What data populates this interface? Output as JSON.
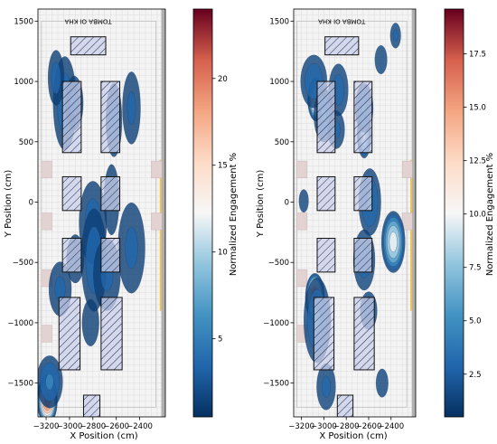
{
  "chart_data": [
    {
      "type": "heatmap",
      "xlabel": "X Position (cm)",
      "ylabel": "Y Position (cm)",
      "xlim": [
        -3270,
        -2180
      ],
      "ylim": [
        -1780,
        1600
      ],
      "xticks": [
        -3200,
        -3000,
        -2800,
        -2600,
        -2400
      ],
      "xtick_labels": [
        "−3200",
        "−3000",
        "−2800",
        "−2600",
        "−2400"
      ],
      "yticks": [
        -1500,
        -1000,
        -500,
        0,
        500,
        1000,
        1500
      ],
      "ytick_labels": [
        "−1500",
        "−1000",
        "−500",
        "0",
        "500",
        "1000",
        "1500"
      ],
      "map_text": "TOMBA OI KHA",
      "colorbar": {
        "label": "Normalized Engagement %",
        "range": [
          0.5,
          24
        ],
        "ticks": [
          5,
          10,
          15,
          20
        ],
        "tick_labels": [
          "5",
          "10",
          "15",
          "20"
        ]
      },
      "obstacles": [
        {
          "x0": -2990,
          "x1": -2690,
          "y0": 1220,
          "y1": 1370
        },
        {
          "x0": -3060,
          "x1": -2900,
          "y0": 410,
          "y1": 1000
        },
        {
          "x0": -2730,
          "x1": -2570,
          "y0": 410,
          "y1": 1000
        },
        {
          "x0": -3060,
          "x1": -2900,
          "y0": -70,
          "y1": 210
        },
        {
          "x0": -2730,
          "x1": -2570,
          "y0": -70,
          "y1": 210
        },
        {
          "x0": -3060,
          "x1": -2900,
          "y0": -580,
          "y1": -300
        },
        {
          "x0": -2730,
          "x1": -2570,
          "y0": -580,
          "y1": -300
        },
        {
          "x0": -3090,
          "x1": -2910,
          "y0": -1390,
          "y1": -790
        },
        {
          "x0": -2730,
          "x1": -2550,
          "y0": -1390,
          "y1": -790
        },
        {
          "x0": -2880,
          "x1": -2740,
          "y0": -1780,
          "y1": -1600
        }
      ],
      "hotspots": [
        {
          "x": -3040,
          "y": 820,
          "sx": 50,
          "sy": 200,
          "v": 5.0
        },
        {
          "x": -3115,
          "y": 1030,
          "sx": 35,
          "sy": 120,
          "v": 4.5
        },
        {
          "x": -2960,
          "y": 820,
          "sx": 40,
          "sy": 120,
          "v": 4.0
        },
        {
          "x": -2620,
          "y": 680,
          "sx": 35,
          "sy": 160,
          "v": 4.5
        },
        {
          "x": -2470,
          "y": 780,
          "sx": 40,
          "sy": 160,
          "v": 4.0
        },
        {
          "x": -2800,
          "y": -170,
          "sx": 60,
          "sy": 180,
          "v": 4.5
        },
        {
          "x": -2790,
          "y": -480,
          "sx": 55,
          "sy": 220,
          "v": 5.0
        },
        {
          "x": -2680,
          "y": -600,
          "sx": 60,
          "sy": 160,
          "v": 4.0
        },
        {
          "x": -2470,
          "y": -380,
          "sx": 60,
          "sy": 200,
          "v": 4.0
        },
        {
          "x": -2950,
          "y": -470,
          "sx": 40,
          "sy": 110,
          "v": 3.5
        },
        {
          "x": -2640,
          "y": 20,
          "sx": 35,
          "sy": 160,
          "v": 3.5
        },
        {
          "x": -3080,
          "y": -720,
          "sx": 50,
          "sy": 120,
          "v": 4.0
        },
        {
          "x": -3190,
          "y": -1640,
          "sx": 40,
          "sy": 100,
          "v": 22.0
        },
        {
          "x": -3170,
          "y": -1490,
          "sx": 55,
          "sy": 110,
          "v": 6.0
        },
        {
          "x": -2820,
          "y": -1000,
          "sx": 40,
          "sy": 110,
          "v": 3.0
        }
      ]
    },
    {
      "type": "heatmap",
      "xlabel": "X Position (cm)",
      "ylabel": "Y Position (cm)",
      "xlim": [
        -3270,
        -2180
      ],
      "ylim": [
        -1780,
        1600
      ],
      "xticks": [
        -3200,
        -3000,
        -2800,
        -2600,
        -2400
      ],
      "xtick_labels": [
        "−3200",
        "−3000",
        "−2800",
        "−2600",
        "−2400"
      ],
      "yticks": [
        -1500,
        -1000,
        -500,
        0,
        500,
        1000,
        1500
      ],
      "ytick_labels": [
        "−1500",
        "−1000",
        "−500",
        "0",
        "500",
        "1000",
        "1500"
      ],
      "map_text": "TOMBA OI KHA",
      "colorbar": {
        "label": "Normalized Engagement %",
        "range": [
          0.5,
          19.6
        ],
        "ticks": [
          2.5,
          5.0,
          7.5,
          10.0,
          12.5,
          15.0,
          17.5
        ],
        "tick_labels": [
          "2.5",
          "5.0",
          "7.5",
          "10.0",
          "12.5",
          "15.0",
          "17.5"
        ]
      },
      "obstacles": [
        {
          "x0": -2990,
          "x1": -2690,
          "y0": 1220,
          "y1": 1370
        },
        {
          "x0": -3060,
          "x1": -2900,
          "y0": 410,
          "y1": 1000
        },
        {
          "x0": -2730,
          "x1": -2570,
          "y0": 410,
          "y1": 1000
        },
        {
          "x0": -3060,
          "x1": -2900,
          "y0": -70,
          "y1": 210
        },
        {
          "x0": -2730,
          "x1": -2570,
          "y0": -70,
          "y1": 210
        },
        {
          "x0": -3060,
          "x1": -2900,
          "y0": -580,
          "y1": -300
        },
        {
          "x0": -2730,
          "x1": -2570,
          "y0": -580,
          "y1": -300
        },
        {
          "x0": -3090,
          "x1": -2910,
          "y0": -1390,
          "y1": -790
        },
        {
          "x0": -2730,
          "x1": -2550,
          "y0": -1390,
          "y1": -790
        },
        {
          "x0": -2880,
          "x1": -2740,
          "y0": -1780,
          "y1": -1600
        }
      ],
      "hotspots": [
        {
          "x": -3070,
          "y": 850,
          "sx": 35,
          "sy": 90,
          "v": 15.0
        },
        {
          "x": -3090,
          "y": 1000,
          "sx": 60,
          "sy": 120,
          "v": 4.5
        },
        {
          "x": -3000,
          "y": 720,
          "sx": 45,
          "sy": 120,
          "v": 5.0
        },
        {
          "x": -2870,
          "y": 930,
          "sx": 45,
          "sy": 120,
          "v": 4.0
        },
        {
          "x": -2640,
          "y": 560,
          "sx": 30,
          "sy": 100,
          "v": 10.5
        },
        {
          "x": -2640,
          "y": 780,
          "sx": 40,
          "sy": 110,
          "v": 5.0
        },
        {
          "x": -2890,
          "y": 600,
          "sx": 40,
          "sy": 90,
          "v": 3.5
        },
        {
          "x": -2360,
          "y": 1380,
          "sx": 25,
          "sy": 60,
          "v": 3.5
        },
        {
          "x": -2490,
          "y": 1180,
          "sx": 30,
          "sy": 70,
          "v": 3.0
        },
        {
          "x": -3180,
          "y": 10,
          "sx": 25,
          "sy": 60,
          "v": 2.5
        },
        {
          "x": -2380,
          "y": -330,
          "sx": 50,
          "sy": 130,
          "v": 11.0
        },
        {
          "x": -2590,
          "y": 0,
          "sx": 50,
          "sy": 150,
          "v": 5.0
        },
        {
          "x": -2640,
          "y": -480,
          "sx": 50,
          "sy": 140,
          "v": 4.0
        },
        {
          "x": -3080,
          "y": -790,
          "sx": 40,
          "sy": 100,
          "v": 19.0
        },
        {
          "x": -3060,
          "y": -980,
          "sx": 60,
          "sy": 190,
          "v": 5.0
        },
        {
          "x": -2980,
          "y": -1530,
          "sx": 45,
          "sy": 110,
          "v": 3.5
        },
        {
          "x": -2600,
          "y": -900,
          "sx": 40,
          "sy": 90,
          "v": 3.5
        },
        {
          "x": -2480,
          "y": -1500,
          "sx": 30,
          "sy": 70,
          "v": 3.0
        }
      ]
    }
  ]
}
